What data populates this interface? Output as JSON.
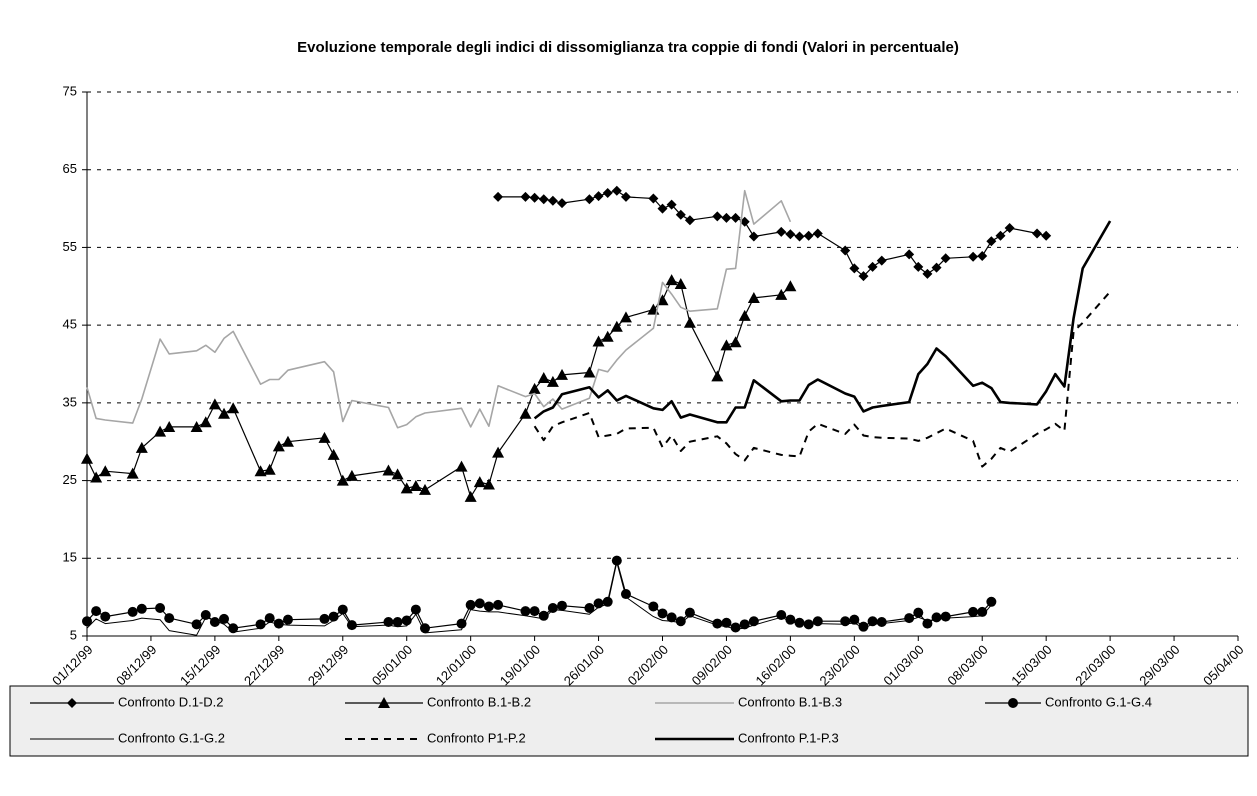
{
  "chart_data": {
    "type": "line",
    "title": "Evoluzione temporale degli indici di dissomiglianza tra coppie di fondi (Valori in percentuale)",
    "x": [
      "1999-12-01",
      "1999-12-02",
      "1999-12-03",
      "1999-12-06",
      "1999-12-07",
      "1999-12-09",
      "1999-12-10",
      "1999-12-13",
      "1999-12-14",
      "1999-12-15",
      "1999-12-16",
      "1999-12-17",
      "1999-12-20",
      "1999-12-21",
      "1999-12-22",
      "1999-12-23",
      "1999-12-27",
      "1999-12-28",
      "1999-12-29",
      "1999-12-30",
      "2000-01-03",
      "2000-01-04",
      "2000-01-05",
      "2000-01-06",
      "2000-01-07",
      "2000-01-11",
      "2000-01-12",
      "2000-01-13",
      "2000-01-14",
      "2000-01-15",
      "2000-01-18",
      "2000-01-19",
      "2000-01-20",
      "2000-01-21",
      "2000-01-22",
      "2000-01-25",
      "2000-01-26",
      "2000-01-27",
      "2000-01-28",
      "2000-01-29",
      "2000-02-01",
      "2000-02-02",
      "2000-02-03",
      "2000-02-04",
      "2000-02-05",
      "2000-02-08",
      "2000-02-09",
      "2000-02-10",
      "2000-02-11",
      "2000-02-12",
      "2000-02-15",
      "2000-02-16",
      "2000-02-17",
      "2000-02-18",
      "2000-02-19",
      "2000-02-22",
      "2000-02-23",
      "2000-02-24",
      "2000-02-25",
      "2000-02-26",
      "2000-02-29",
      "2000-03-01",
      "2000-03-02",
      "2000-03-03",
      "2000-03-04",
      "2000-03-07",
      "2000-03-08",
      "2000-03-09",
      "2000-03-10",
      "2000-03-11",
      "2000-03-14",
      "2000-03-15",
      "2000-03-16",
      "2000-03-17",
      "2000-03-18",
      "2000-03-19",
      "2000-03-22"
    ],
    "series": [
      {
        "name": "Confronto D.1-D.2",
        "color": "#000000",
        "marker": "diamond",
        "line_width": 1.2,
        "dash": "solid",
        "values": [
          null,
          null,
          null,
          null,
          null,
          null,
          null,
          null,
          null,
          null,
          null,
          null,
          null,
          null,
          null,
          null,
          null,
          null,
          null,
          null,
          null,
          null,
          null,
          null,
          null,
          null,
          null,
          null,
          null,
          61.5,
          61.5,
          61.4,
          61.2,
          61.0,
          60.7,
          61.2,
          61.6,
          62.0,
          62.3,
          61.5,
          61.3,
          60.0,
          60.5,
          59.2,
          58.5,
          59.0,
          58.8,
          58.8,
          58.3,
          56.4,
          57.0,
          56.7,
          56.4,
          56.5,
          56.8,
          54.6,
          52.3,
          51.3,
          52.5,
          53.3,
          54.1,
          52.5,
          51.6,
          52.4,
          53.6,
          53.8,
          53.9,
          55.8,
          56.5,
          57.5,
          56.8,
          56.5,
          null,
          null,
          null,
          null,
          null
        ]
      },
      {
        "name": "Confronto B.1-B.2",
        "color": "#000000",
        "marker": "triangle",
        "line_width": 1.2,
        "dash": "solid",
        "values": [
          27.8,
          25.4,
          26.2,
          25.9,
          29.2,
          31.3,
          31.9,
          31.9,
          32.5,
          34.8,
          33.6,
          34.3,
          26.2,
          26.4,
          29.4,
          30.0,
          30.5,
          28.3,
          25.0,
          25.6,
          26.3,
          25.8,
          24.0,
          24.3,
          23.8,
          26.8,
          22.9,
          24.8,
          24.5,
          28.6,
          33.6,
          36.8,
          38.2,
          37.7,
          38.6,
          38.9,
          42.9,
          43.5,
          44.8,
          46.0,
          47.0,
          48.2,
          50.8,
          50.3,
          45.3,
          38.4,
          42.4,
          42.8,
          46.2,
          48.5,
          48.9,
          50.0,
          null,
          null,
          null,
          null,
          null,
          null,
          null,
          null,
          null,
          null,
          null,
          null,
          null,
          null,
          null,
          null,
          null,
          null,
          null,
          null,
          null,
          null,
          null,
          null,
          null
        ]
      },
      {
        "name": "Confronto B.1-B.3",
        "color": "#a6a6a6",
        "marker": "none",
        "line_width": 1.6,
        "dash": "solid",
        "values": [
          37.0,
          33.0,
          32.8,
          32.4,
          35.5,
          43.2,
          41.3,
          41.7,
          42.4,
          41.5,
          43.3,
          44.2,
          37.4,
          38.0,
          38.0,
          39.2,
          40.3,
          39.0,
          32.6,
          35.3,
          34.4,
          31.8,
          32.2,
          33.2,
          33.7,
          34.3,
          31.9,
          34.2,
          32.0,
          37.2,
          35.8,
          36.2,
          34.5,
          35.5,
          34.2,
          35.6,
          39.3,
          39.0,
          40.5,
          41.8,
          44.6,
          50.5,
          49.0,
          47.3,
          46.8,
          47.1,
          52.2,
          52.3,
          62.3,
          58.0,
          61.0,
          58.3,
          null,
          null,
          null,
          null,
          null,
          null,
          null,
          null,
          null,
          null,
          null,
          null,
          null,
          null,
          null,
          null,
          null,
          null,
          null,
          null,
          null,
          null,
          null,
          null,
          null
        ]
      },
      {
        "name": "Confronto G.1-G.4",
        "color": "#000000",
        "marker": "circle",
        "line_width": 1.2,
        "dash": "solid",
        "values": [
          6.9,
          8.2,
          7.5,
          8.1,
          8.5,
          8.6,
          7.3,
          6.5,
          7.7,
          6.8,
          7.2,
          6.0,
          6.5,
          7.3,
          6.6,
          7.1,
          7.2,
          7.5,
          8.4,
          6.4,
          6.8,
          6.8,
          7.0,
          8.4,
          6.0,
          6.6,
          9.0,
          9.2,
          8.8,
          9.0,
          8.2,
          8.2,
          7.6,
          8.6,
          8.9,
          8.6,
          9.2,
          9.4,
          14.7,
          10.4,
          8.8,
          7.9,
          7.4,
          6.9,
          8.0,
          6.6,
          6.7,
          6.1,
          6.5,
          6.9,
          7.7,
          7.1,
          6.7,
          6.5,
          6.9,
          6.9,
          7.1,
          6.2,
          6.9,
          6.8,
          7.3,
          8.0,
          6.6,
          7.4,
          7.5,
          8.1,
          8.1,
          9.4,
          null,
          null,
          null,
          null,
          null,
          null,
          null,
          null,
          null
        ]
      },
      {
        "name": "Confronto G.1-G.2",
        "color": "#000000",
        "marker": "none",
        "line_width": 1,
        "dash": "solid",
        "values": [
          6.0,
          7.2,
          6.6,
          7.0,
          7.3,
          7.1,
          5.7,
          5.1,
          7.4,
          7.0,
          6.5,
          5.5,
          6.0,
          6.8,
          6.5,
          6.4,
          6.3,
          7.0,
          7.9,
          6.2,
          6.4,
          6.2,
          6.3,
          7.8,
          5.4,
          5.8,
          8.4,
          8.2,
          8.1,
          8.1,
          7.6,
          7.4,
          7.2,
          8.4,
          8.3,
          7.8,
          8.7,
          9.1,
          14.5,
          10.0,
          7.5,
          7.0,
          6.9,
          6.7,
          7.6,
          6.4,
          6.2,
          5.9,
          6.0,
          6.4,
          7.4,
          6.9,
          6.5,
          6.5,
          6.6,
          6.5,
          6.7,
          6.0,
          6.5,
          6.6,
          7.0,
          7.4,
          7.0,
          7.1,
          7.3,
          7.5,
          7.6,
          9.0,
          null,
          null,
          null,
          null,
          null,
          null,
          null,
          null,
          null
        ]
      },
      {
        "name": "Confronto P1-P.2",
        "color": "#000000",
        "marker": "none",
        "line_width": 2,
        "dash": "dashed",
        "values": [
          null,
          null,
          null,
          null,
          null,
          null,
          null,
          null,
          null,
          null,
          null,
          null,
          null,
          null,
          null,
          null,
          null,
          null,
          null,
          null,
          null,
          null,
          null,
          null,
          null,
          null,
          null,
          null,
          null,
          null,
          null,
          32.0,
          30.2,
          32.0,
          32.5,
          33.7,
          30.6,
          30.8,
          31.0,
          31.7,
          31.8,
          29.3,
          30.8,
          28.8,
          30.0,
          30.7,
          29.8,
          28.4,
          27.6,
          29.2,
          28.3,
          28.2,
          28.1,
          31.3,
          32.3,
          31.0,
          32.2,
          30.8,
          30.6,
          30.5,
          30.4,
          30.1,
          30.5,
          31.1,
          31.7,
          30.1,
          26.8,
          27.8,
          29.2,
          28.7,
          31.0,
          31.6,
          32.3,
          31.4,
          44.2,
          45.3,
          49.3
        ]
      },
      {
        "name": "Confronto P.1-P.3",
        "color": "#000000",
        "marker": "none",
        "line_width": 2.6,
        "dash": "solid",
        "values": [
          null,
          null,
          null,
          null,
          null,
          null,
          null,
          null,
          null,
          null,
          null,
          null,
          null,
          null,
          null,
          null,
          null,
          null,
          null,
          null,
          null,
          null,
          null,
          null,
          null,
          null,
          null,
          null,
          null,
          null,
          null,
          33.0,
          33.9,
          34.4,
          36.1,
          37.0,
          35.7,
          36.6,
          35.3,
          35.9,
          34.3,
          34.1,
          35.2,
          33.1,
          33.5,
          32.5,
          32.5,
          34.4,
          34.4,
          37.9,
          35.2,
          35.3,
          35.3,
          37.3,
          38.0,
          36.2,
          35.8,
          33.9,
          34.4,
          34.6,
          35.1,
          38.7,
          40.0,
          42.0,
          41.0,
          37.2,
          37.6,
          36.9,
          35.1,
          35.0,
          34.8,
          36.5,
          38.7,
          37.1,
          45.9,
          52.3,
          58.4
        ]
      }
    ],
    "xlim": [
      "1999-12-01",
      "2000-04-05"
    ],
    "xticks": [
      {
        "value": "1999-12-01",
        "label": "01/12/99"
      },
      {
        "value": "1999-12-08",
        "label": "08/12/99"
      },
      {
        "value": "1999-12-15",
        "label": "15/12/99"
      },
      {
        "value": "1999-12-22",
        "label": "22/12/99"
      },
      {
        "value": "1999-12-29",
        "label": "29/12/99"
      },
      {
        "value": "2000-01-05",
        "label": "05/01/00"
      },
      {
        "value": "2000-01-12",
        "label": "12/01/00"
      },
      {
        "value": "2000-01-19",
        "label": "19/01/00"
      },
      {
        "value": "2000-01-26",
        "label": "26/01/00"
      },
      {
        "value": "2000-02-02",
        "label": "02/02/00"
      },
      {
        "value": "2000-02-09",
        "label": "09/02/00"
      },
      {
        "value": "2000-02-16",
        "label": "16/02/00"
      },
      {
        "value": "2000-02-23",
        "label": "23/02/00"
      },
      {
        "value": "2000-03-01",
        "label": "01/03/00"
      },
      {
        "value": "2000-03-08",
        "label": "08/03/00"
      },
      {
        "value": "2000-03-15",
        "label": "15/03/00"
      },
      {
        "value": "2000-03-22",
        "label": "22/03/00"
      },
      {
        "value": "2000-03-29",
        "label": "29/03/00"
      },
      {
        "value": "2000-04-05",
        "label": "05/04/00"
      }
    ],
    "ylim": [
      5,
      75
    ],
    "yticks": [
      5,
      15,
      25,
      35,
      45,
      55,
      65,
      75
    ],
    "grid": true,
    "legend": "bottom"
  }
}
